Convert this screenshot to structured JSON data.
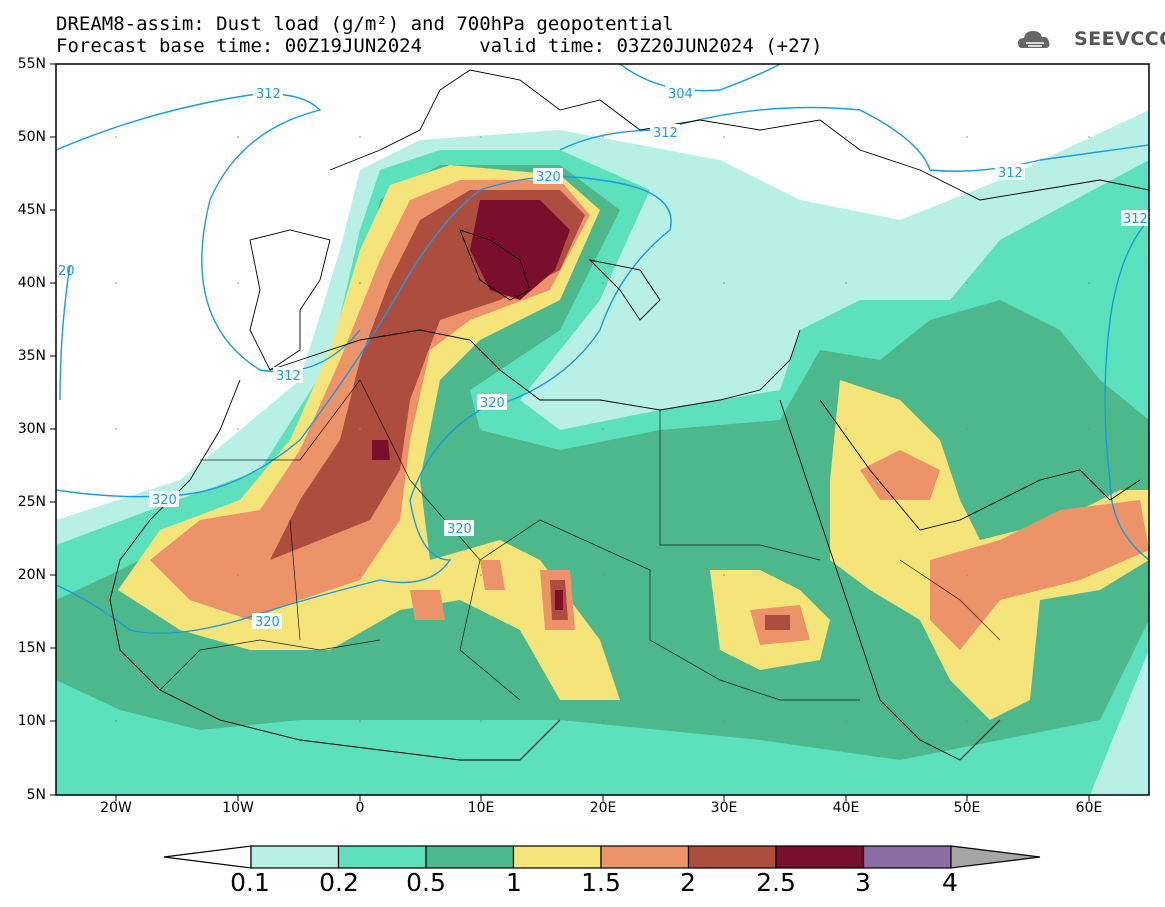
{
  "header": {
    "title_line1": "DREAM8-assim: Dust load (g/m²) and 700hPa geopotential",
    "title_line2": "Forecast base time: 00Z19JUN2024     valid time: 03Z20JUN2024 (+27)",
    "logo_text": "SEEVCCC"
  },
  "map": {
    "lat_labels": [
      "55N",
      "50N",
      "45N",
      "40N",
      "35N",
      "30N",
      "25N",
      "20N",
      "15N",
      "10N",
      "5N"
    ],
    "lon_labels": [
      "20W",
      "10W",
      "0",
      "10E",
      "20E",
      "30E",
      "40E",
      "50E",
      "60E"
    ],
    "contour_labels": [
      "312",
      "304",
      "312",
      "320",
      "312",
      "320",
      "320",
      "320",
      "312",
      "312",
      "320",
      "20"
    ],
    "colors": {
      "contour": "#1a9be0",
      "coast": "#000000"
    }
  },
  "colorbar": {
    "tick_labels": [
      "0.1",
      "0.2",
      "0.5",
      "1",
      "1.5",
      "2",
      "2.5",
      "3",
      "4"
    ],
    "colors": [
      "#ffffff",
      "#b8f0e6",
      "#5de0bc",
      "#4cb88c",
      "#f5e47a",
      "#ec936a",
      "#ac4d3e",
      "#7a0f2c",
      "#8a6ea4",
      "#a6a6a6"
    ]
  }
}
